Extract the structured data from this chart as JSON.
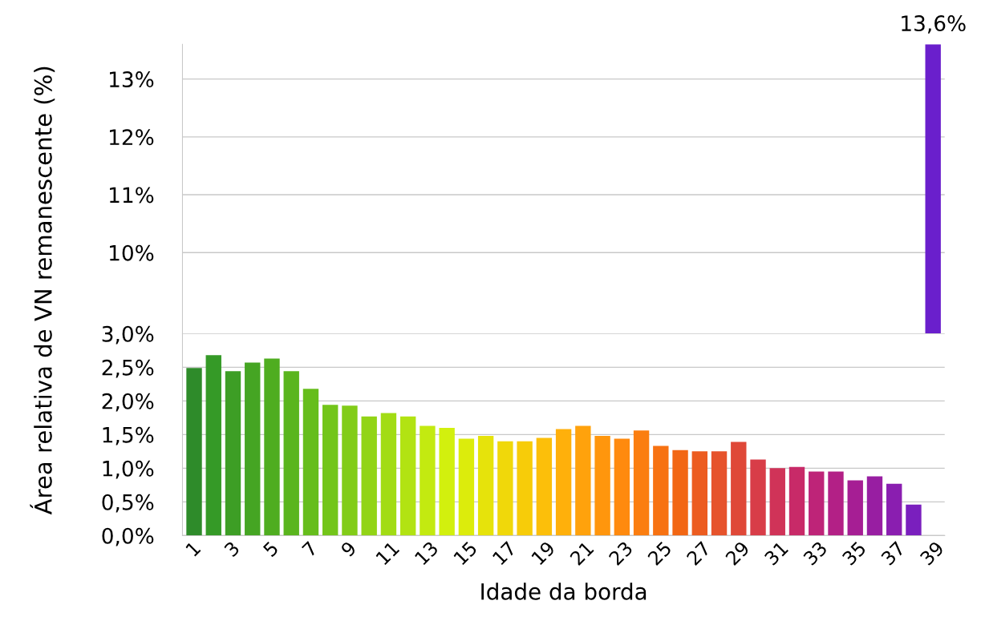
{
  "chart_data": [
    {
      "type": "bar",
      "categories": [
        "1",
        null,
        "3",
        null,
        "5",
        null,
        "7",
        null,
        "9",
        null,
        "11",
        null,
        "13",
        null,
        "15",
        null,
        "17",
        null,
        "19",
        null,
        "21",
        null,
        "23",
        null,
        "25",
        null,
        "27",
        null,
        "29",
        null,
        "31",
        null,
        "33",
        null,
        "35",
        null,
        "37",
        null,
        "39"
      ],
      "values": [
        null,
        null,
        null,
        null,
        null,
        null,
        null,
        null,
        null,
        null,
        null,
        null,
        null,
        null,
        null,
        null,
        null,
        null,
        null,
        null,
        null,
        null,
        null,
        null,
        null,
        null,
        null,
        null,
        null,
        null,
        null,
        null,
        null,
        null,
        null,
        null,
        null,
        null,
        13.6
      ],
      "value_labels": [
        null,
        null,
        null,
        null,
        null,
        null,
        null,
        null,
        null,
        null,
        null,
        null,
        null,
        null,
        null,
        null,
        null,
        null,
        null,
        null,
        null,
        null,
        null,
        null,
        null,
        null,
        null,
        null,
        null,
        null,
        null,
        null,
        null,
        null,
        null,
        null,
        null,
        null,
        "13,6%"
      ],
      "colors": [
        "#2e8b2a",
        "#359a27",
        "#3d9e25",
        "#45a523",
        "#4fad20",
        "#5ab51e",
        "#66bd1c",
        "#73c51a",
        "#82cc18",
        "#92d416",
        "#a2dc14",
        "#b2e312",
        "#c3ea10",
        "#d2f00e",
        "#dcec0c",
        "#e6e30b",
        "#f0d80a",
        "#f7cc09",
        "#fcbf0a",
        "#ffb00b",
        "#ffa20c",
        "#ff960d",
        "#ff8a0e",
        "#fb7e10",
        "#f77212",
        "#f26714",
        "#ec5c20",
        "#e6532c",
        "#df4838",
        "#d83d48",
        "#d03358",
        "#c82a68",
        "#be2478",
        "#b32086",
        "#a61e94",
        "#981ea2",
        "#8a1eb0",
        "#7a1fbe",
        "#6a1fcc"
      ],
      "ylim": [
        8.6,
        13.6
      ],
      "yticks": [
        {
          "value": 10,
          "label": "10%"
        },
        {
          "value": 11,
          "label": "11%"
        },
        {
          "value": 12,
          "label": "12%"
        },
        {
          "value": 13,
          "label": "13%"
        }
      ],
      "grid": "y",
      "tick_labels": "y"
    },
    {
      "type": "bar",
      "categories": [
        "1",
        null,
        "3",
        null,
        "5",
        null,
        "7",
        null,
        "9",
        null,
        "11",
        null,
        "13",
        null,
        "15",
        null,
        "17",
        null,
        "19",
        null,
        "21",
        null,
        "23",
        null,
        "25",
        null,
        "27",
        null,
        "29",
        null,
        "31",
        null,
        "33",
        null,
        "35",
        null,
        "37",
        null,
        "39"
      ],
      "values": [
        2.49,
        2.68,
        2.44,
        2.57,
        2.63,
        2.44,
        2.18,
        1.94,
        1.93,
        1.77,
        1.82,
        1.77,
        1.63,
        1.6,
        1.44,
        1.48,
        1.4,
        1.4,
        1.45,
        1.58,
        1.63,
        1.48,
        1.44,
        1.56,
        1.33,
        1.27,
        1.25,
        1.25,
        1.39,
        1.13,
        1.0,
        1.02,
        0.95,
        0.95,
        0.82,
        0.88,
        0.77,
        0.46,
        null
      ],
      "colors": [
        "#2e8b2a",
        "#359a27",
        "#3d9e25",
        "#45a523",
        "#4fad20",
        "#5ab51e",
        "#66bd1c",
        "#73c51a",
        "#82cc18",
        "#92d416",
        "#a2dc14",
        "#b2e312",
        "#c3ea10",
        "#d2f00e",
        "#dcec0c",
        "#e6e30b",
        "#f0d80a",
        "#f7cc09",
        "#fcbf0a",
        "#ffb00b",
        "#ffa20c",
        "#ff960d",
        "#ff8a0e",
        "#fb7e10",
        "#f77212",
        "#f26714",
        "#ec5c20",
        "#e6532c",
        "#df4838",
        "#d83d48",
        "#d03358",
        "#c82a68",
        "#be2478",
        "#b32086",
        "#a61e94",
        "#981ea2",
        "#8a1eb0",
        "#7a1fbe",
        "#6a1fcc"
      ],
      "ylim": [
        0,
        3.0
      ],
      "yticks": [
        {
          "value": 0,
          "label": "0,0%"
        },
        {
          "value": 0.5,
          "label": "0,5%"
        },
        {
          "value": 1.0,
          "label": "1,0%"
        },
        {
          "value": 1.5,
          "label": "1,5%"
        },
        {
          "value": 2.0,
          "label": "2,0%"
        },
        {
          "value": 2.5,
          "label": "2,5%"
        },
        {
          "value": 3.0,
          "label": "3,0%"
        }
      ],
      "xlabel": "Idade da borda",
      "ylabel": "Área relativa de VN remanescente (%)",
      "grid": "y"
    }
  ]
}
